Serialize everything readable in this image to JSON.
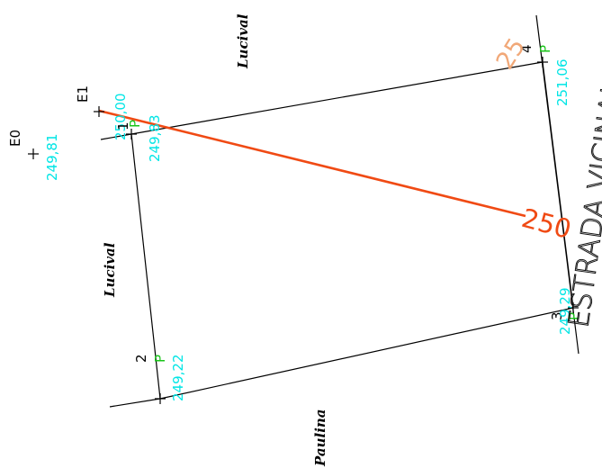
{
  "labels": {
    "neighbor_top": "Lucival",
    "neighbor_left": "Lucival",
    "neighbor_bottom": "Paulina",
    "road": "ESTRADA VICINAL",
    "contour": "250",
    "contour_faded": "25"
  },
  "stations": [
    {
      "id": "E0",
      "elevation": "249,81"
    },
    {
      "id": "E1",
      "elevation": "250,00"
    }
  ],
  "vertices": [
    {
      "id": "1",
      "code": "P",
      "elevation": "249,83"
    },
    {
      "id": "2",
      "code": "P",
      "elevation": "249,22"
    },
    {
      "id": "3",
      "code": "P",
      "elevation": "249,29"
    },
    {
      "id": "4",
      "code": "P",
      "elevation": "251,06"
    }
  ],
  "colors": {
    "boundary": "#000000",
    "elevation_text": "#00e5e5",
    "point_code": "#19c419",
    "contour_line": "#f04a14",
    "contour_faded": "#f1a878"
  }
}
